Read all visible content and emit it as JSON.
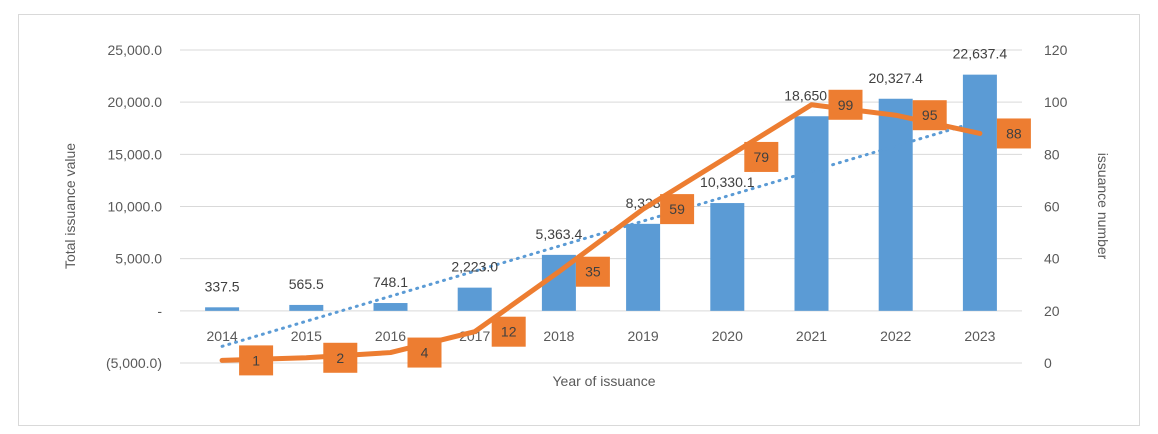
{
  "chart_data": {
    "type": "bar",
    "categories": [
      "2014",
      "2015",
      "2016",
      "2017",
      "2018",
      "2019",
      "2020",
      "2021",
      "2022",
      "2023"
    ],
    "series": [
      {
        "name": "",
        "kind": "bar",
        "axis": "left",
        "color": "#5b9bd5",
        "values": [
          337.5,
          565.5,
          748.1,
          2223.0,
          5363.4,
          8338.0,
          10330.1,
          18650.0,
          20327.4,
          22637.4
        ],
        "labels": [
          "337.5",
          "565.5",
          "748.1",
          "2,223.0",
          "5,363.4",
          "8,338",
          "10,330.1",
          "18,650.0",
          "20,327.4",
          "22,637.4"
        ]
      },
      {
        "name": "",
        "kind": "line",
        "axis": "right",
        "color": "#ed7d31",
        "values": [
          1,
          2,
          4,
          12,
          35,
          59,
          79,
          99,
          95,
          88
        ],
        "labels": [
          "1",
          "2",
          "4",
          "12",
          "35",
          "59",
          "79",
          "99",
          "95",
          "88"
        ]
      },
      {
        "name": "",
        "kind": "trendline",
        "axis": "left",
        "color": "#5b9bd5",
        "style": "dotted",
        "values": [
          -3400,
          -1000,
          1400,
          3800,
          6200,
          8600,
          11000,
          13400,
          15800,
          18200
        ]
      }
    ],
    "left_axis": {
      "title": "Total issuance value",
      "ylim": [
        -5000,
        25000
      ],
      "ticks": [
        -5000,
        0,
        5000,
        10000,
        15000,
        20000,
        25000
      ],
      "tick_labels": [
        "(5,000.0)",
        "-",
        "5,000.0",
        "10,000.0",
        "15,000.0",
        "20,000.0",
        "25,000.0"
      ]
    },
    "right_axis": {
      "title": "issuance number",
      "ylim": [
        0,
        120
      ],
      "ticks": [
        0,
        20,
        40,
        60,
        80,
        100,
        120
      ],
      "tick_labels": [
        "0",
        "20",
        "40",
        "60",
        "80",
        "100",
        "120"
      ]
    },
    "xlabel": "Year of issuance",
    "grid": true,
    "legend": "none"
  }
}
